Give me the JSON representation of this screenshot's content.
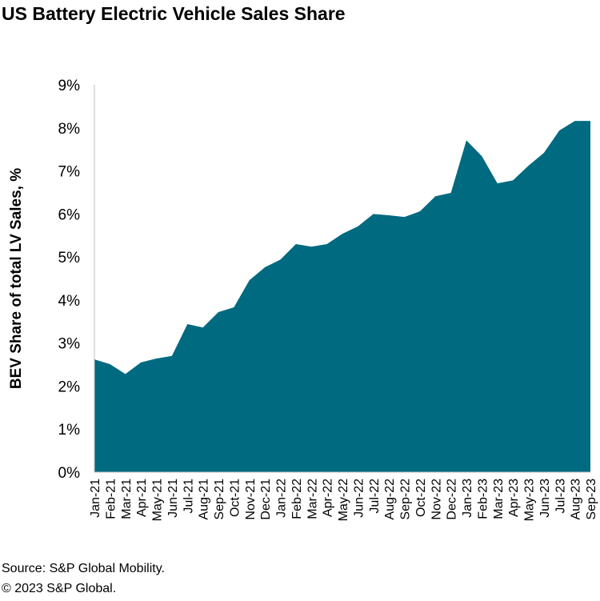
{
  "title": "US Battery Electric Vehicle Sales Share",
  "source": "Source: S&P Global Mobility.",
  "copyright": "© 2023 S&P Global.",
  "chart_data": {
    "type": "area",
    "title": "US Battery Electric Vehicle Sales Share",
    "ylabel": "BEV Share of total LV Sales, %",
    "xlabel": "",
    "ylim": [
      0,
      9
    ],
    "yticks": [
      "0%",
      "1%",
      "2%",
      "3%",
      "4%",
      "5%",
      "6%",
      "7%",
      "8%",
      "9%"
    ],
    "grid": false,
    "color": "#006a80",
    "categories": [
      "Jan-21",
      "Feb-21",
      "Mar-21",
      "Apr-21",
      "May-21",
      "Jun-21",
      "Jul-21",
      "Aug-21",
      "Sep-21",
      "Oct-21",
      "Nov-21",
      "Dec-21",
      "Jan-22",
      "Feb-22",
      "Mar-22",
      "Apr-22",
      "May-22",
      "Jun-22",
      "Jul-22",
      "Aug-22",
      "Sep-22",
      "Oct-22",
      "Nov-22",
      "Dec-22",
      "Jan-23",
      "Feb-23",
      "Mar-23",
      "Apr-23",
      "May-23",
      "Jun-23",
      "Jul-23",
      "Aug-23",
      "Sep-23"
    ],
    "values": [
      2.62,
      2.51,
      2.28,
      2.55,
      2.64,
      2.7,
      3.44,
      3.36,
      3.72,
      3.83,
      4.46,
      4.76,
      4.94,
      5.3,
      5.24,
      5.3,
      5.54,
      5.71,
      6.0,
      5.97,
      5.93,
      6.06,
      6.41,
      6.49,
      7.71,
      7.34,
      6.71,
      6.78,
      7.12,
      7.42,
      7.94,
      8.16,
      8.16
    ]
  }
}
